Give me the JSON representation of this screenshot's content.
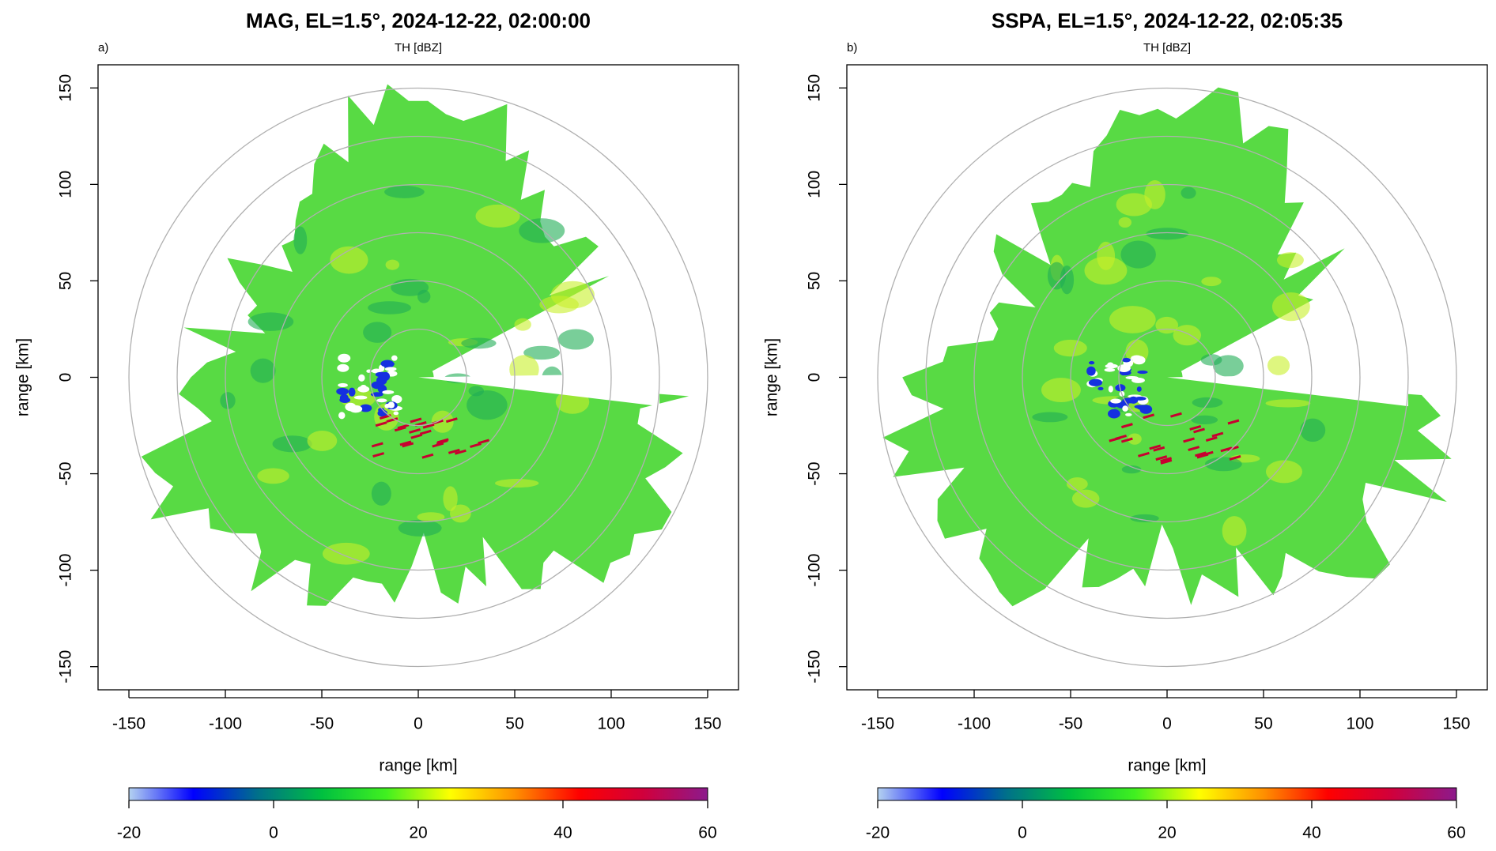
{
  "chart_data": [
    {
      "type": "radar-ppi",
      "title": "MAG, EL=1.5°, 2024-12-22, 02:00:00",
      "panel": "a)",
      "subtitle": "TH [dBZ]",
      "xlabel": "range [km]",
      "ylabel": "range [km]",
      "xlim": [
        -166,
        166
      ],
      "ylim": [
        -162,
        162
      ],
      "xticks": [
        -150,
        -100,
        -50,
        0,
        50,
        100,
        150
      ],
      "yticks": [
        -150,
        -100,
        -50,
        0,
        50,
        100,
        150
      ],
      "rings": [
        25,
        50,
        75,
        100,
        125,
        150
      ],
      "colorbar": {
        "lim": [
          -20,
          60
        ],
        "ticks": [
          -20,
          0,
          20,
          40,
          60
        ],
        "colors": [
          "#b4d2f0",
          "#0000ff",
          "#00708a",
          "#00c040",
          "#40f020",
          "#ffff00",
          "#ff9000",
          "#ff0000",
          "#d0003c",
          "#8c1a8c"
        ]
      }
    },
    {
      "type": "radar-ppi",
      "title": "SSPA, EL=1.5°, 2024-12-22, 02:05:35",
      "panel": "b)",
      "subtitle": "TH [dBZ]",
      "xlabel": "range [km]",
      "ylabel": "range [km]",
      "xlim": [
        -166,
        166
      ],
      "ylim": [
        -162,
        162
      ],
      "xticks": [
        -150,
        -100,
        -50,
        0,
        50,
        100,
        150
      ],
      "yticks": [
        -150,
        -100,
        -50,
        0,
        50,
        100,
        150
      ],
      "rings": [
        25,
        50,
        75,
        100,
        125,
        150
      ],
      "colorbar": {
        "lim": [
          -20,
          60
        ],
        "ticks": [
          -20,
          0,
          20,
          40,
          60
        ],
        "colors": [
          "#b4d2f0",
          "#0000ff",
          "#00708a",
          "#00c040",
          "#40f020",
          "#ffff00",
          "#ff9000",
          "#ff0000",
          "#d0003c",
          "#8c1a8c"
        ]
      }
    }
  ]
}
